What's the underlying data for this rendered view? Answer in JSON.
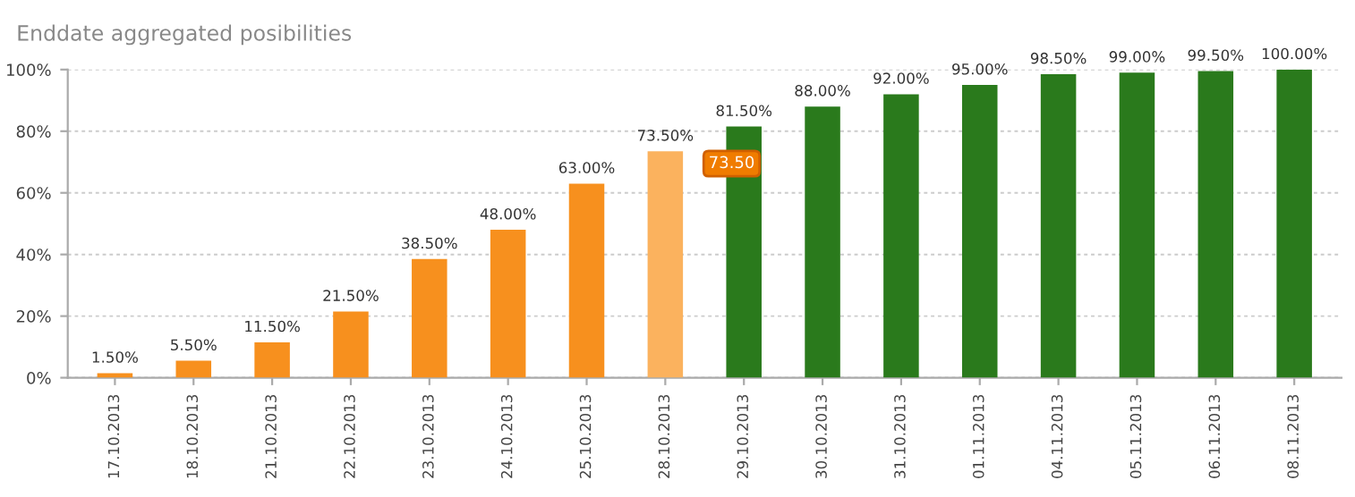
{
  "chart_data": {
    "type": "bar",
    "title": "Enddate aggregated posibilities",
    "categories": [
      "17.10.2013",
      "18.10.2013",
      "21.10.2013",
      "22.10.2013",
      "23.10.2013",
      "24.10.2013",
      "25.10.2013",
      "28.10.2013",
      "29.10.2013",
      "30.10.2013",
      "31.10.2013",
      "01.11.2013",
      "04.11.2013",
      "05.11.2013",
      "06.11.2013",
      "08.11.2013"
    ],
    "values": [
      1.5,
      5.5,
      11.5,
      21.5,
      38.5,
      48,
      63,
      73.5,
      81.5,
      88,
      92,
      95,
      98.5,
      99,
      99.5,
      100
    ],
    "value_labels": [
      "1.50%",
      "5.50%",
      "11.50%",
      "21.50%",
      "38.50%",
      "48.00%",
      "63.00%",
      "73.50%",
      "81.50%",
      "88.00%",
      "92.00%",
      "95.00%",
      "98.50%",
      "99.00%",
      "99.50%",
      "100.00%"
    ],
    "colors": [
      "#f7901e",
      "#f7901e",
      "#f7901e",
      "#f7901e",
      "#f7901e",
      "#f7901e",
      "#f7901e",
      "#fbb25e",
      "#2a7a1c",
      "#2a7a1c",
      "#2a7a1c",
      "#2a7a1c",
      "#2a7a1c",
      "#2a7a1c",
      "#2a7a1c",
      "#2a7a1c"
    ],
    "annotations": [
      {
        "text": "73.50",
        "x": "28.10.2013",
        "y": 73.5
      }
    ],
    "ylim": [
      0,
      100
    ],
    "yticks": [
      {
        "value": 0,
        "label": "0%"
      },
      {
        "value": 20,
        "label": "20%"
      },
      {
        "value": 40,
        "label": "40%"
      },
      {
        "value": 60,
        "label": "60%"
      },
      {
        "value": 80,
        "label": "80%"
      },
      {
        "value": 100,
        "label": "100%"
      }
    ],
    "grid": "y"
  }
}
